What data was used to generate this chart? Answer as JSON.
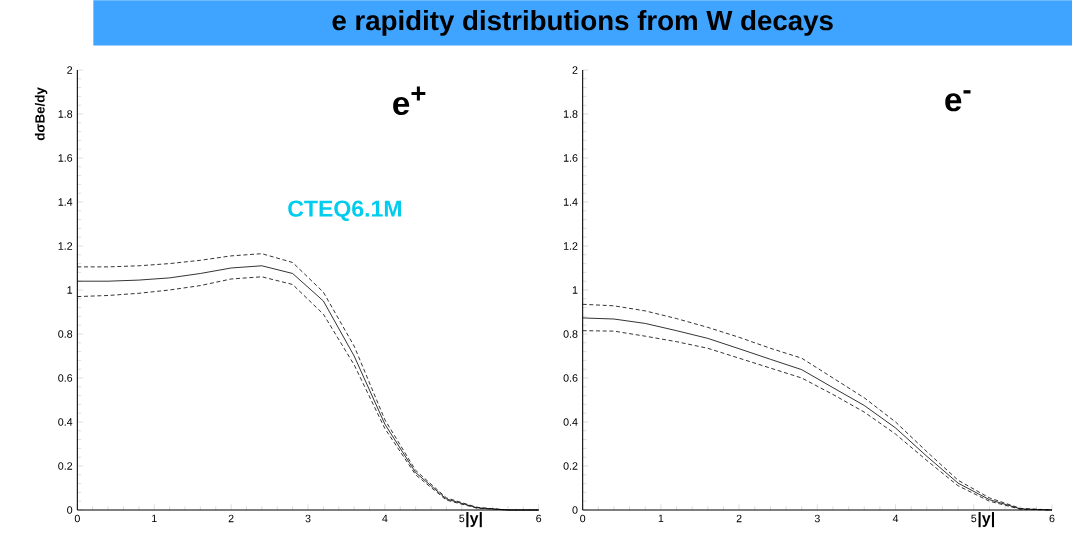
{
  "chart_data": [
    {
      "type": "line",
      "title": "e rapidity distributions from W decays",
      "xlabel": "|y|",
      "ylabel": "dσBe/dy",
      "annotations": [
        "e$^{+}$",
        "CTEQ6.1M"
      ],
      "x": [
        0,
        0.4,
        0.8,
        1.2,
        1.6,
        2.0,
        2.4,
        2.8,
        3.2,
        3.6,
        4.0,
        4.4,
        4.8,
        5.2,
        5.6,
        6.0
      ],
      "series": [
        {
          "color": "#000000",
          "line_style": "solid",
          "values": [
            1.04,
            1.04,
            1.045,
            1.055,
            1.075,
            1.1,
            1.11,
            1.075,
            0.95,
            0.7,
            0.39,
            0.17,
            0.05,
            0.01,
            0.0,
            0.0
          ]
        },
        {
          "color": "#000000",
          "line_style": "dashed",
          "values": [
            1.105,
            1.105,
            1.11,
            1.12,
            1.135,
            1.155,
            1.165,
            1.125,
            0.99,
            0.745,
            0.41,
            0.18,
            0.055,
            0.012,
            0.0,
            0.0
          ]
        },
        {
          "color": "#000000",
          "line_style": "dashed",
          "values": [
            0.97,
            0.975,
            0.985,
            1.0,
            1.02,
            1.05,
            1.06,
            1.025,
            0.89,
            0.66,
            0.37,
            0.16,
            0.045,
            0.008,
            0.0,
            0.0
          ]
        }
      ],
      "xlim": [
        0,
        6
      ],
      "ylim": [
        0,
        2
      ],
      "xticks": [
        0,
        1,
        2,
        3,
        4,
        5,
        6
      ],
      "yticks": [
        0,
        0.2,
        0.4,
        0.6,
        0.8,
        1,
        1.2,
        1.4,
        1.6,
        1.8,
        2
      ]
    },
    {
      "type": "line",
      "xlabel": "|y|",
      "annotations": [
        "e$^{-}$"
      ],
      "x": [
        0,
        0.4,
        0.8,
        1.2,
        1.6,
        2.0,
        2.4,
        2.8,
        3.2,
        3.6,
        4.0,
        4.4,
        4.8,
        5.2,
        5.6,
        6.0
      ],
      "series": [
        {
          "color": "#000000",
          "line_style": "solid",
          "values": [
            0.873,
            0.868,
            0.848,
            0.815,
            0.78,
            0.733,
            0.685,
            0.638,
            0.556,
            0.475,
            0.373,
            0.244,
            0.122,
            0.047,
            0.005,
            0.0
          ]
        },
        {
          "color": "#000000",
          "line_style": "dashed",
          "values": [
            0.935,
            0.928,
            0.905,
            0.87,
            0.83,
            0.785,
            0.735,
            0.69,
            0.6,
            0.51,
            0.4,
            0.265,
            0.135,
            0.055,
            0.007,
            0.0
          ]
        },
        {
          "color": "#000000",
          "line_style": "dashed",
          "values": [
            0.815,
            0.813,
            0.79,
            0.765,
            0.735,
            0.69,
            0.645,
            0.6,
            0.525,
            0.445,
            0.345,
            0.225,
            0.11,
            0.04,
            0.003,
            0.0
          ]
        }
      ],
      "xlim": [
        0,
        6
      ],
      "ylim": [
        0,
        2
      ],
      "xticks": [
        0,
        1,
        2,
        3,
        4,
        5,
        6
      ],
      "yticks": [
        0,
        0.2,
        0.4,
        0.6,
        0.8,
        1,
        1.2,
        1.4,
        1.6,
        1.8,
        2
      ]
    }
  ]
}
